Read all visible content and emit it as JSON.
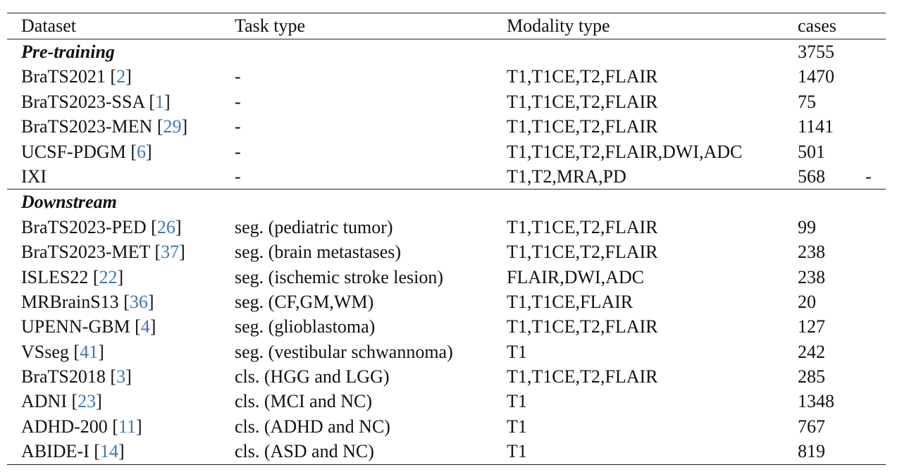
{
  "columns": [
    "Dataset",
    "Task type",
    "Modality type",
    "cases"
  ],
  "pretraining": {
    "label": "Pre-training",
    "total": "3755",
    "rows": [
      {
        "name": "BraTS2021",
        "ref": "2",
        "task": "-",
        "modality": "T1,T1CE,T2,FLAIR",
        "cases": "1470",
        "extra": ""
      },
      {
        "name": "BraTS2023-SSA",
        "ref": "1",
        "task": "-",
        "modality": "T1,T1CE,T2,FLAIR",
        "cases": "75",
        "extra": ""
      },
      {
        "name": "BraTS2023-MEN",
        "ref": "29",
        "task": "-",
        "modality": "T1,T1CE,T2,FLAIR",
        "cases": "1141",
        "extra": ""
      },
      {
        "name": "UCSF-PDGM",
        "ref": "6",
        "task": "-",
        "modality": "T1,T1CE,T2,FLAIR,DWI,ADC",
        "cases": "501",
        "extra": ""
      },
      {
        "name": "IXI",
        "ref": "",
        "task": "-",
        "modality": "T1,T2,MRA,PD",
        "cases": "568",
        "extra": "-"
      }
    ]
  },
  "downstream": {
    "label": "Downstream",
    "rows": [
      {
        "name": "BraTS2023-PED",
        "ref": "26",
        "task": "seg. (pediatric tumor)",
        "modality": "T1,T1CE,T2,FLAIR",
        "cases": "99"
      },
      {
        "name": "BraTS2023-MET",
        "ref": "37",
        "task": "seg. (brain metastases)",
        "modality": "T1,T1CE,T2,FLAIR",
        "cases": "238"
      },
      {
        "name": "ISLES22",
        "ref": "22",
        "task": "seg. (ischemic stroke lesion)",
        "modality": "FLAIR,DWI,ADC",
        "cases": "238"
      },
      {
        "name": "MRBrainS13",
        "ref": "36",
        "task": "seg. (CF,GM,WM)",
        "modality": "T1,T1CE,FLAIR",
        "cases": "20"
      },
      {
        "name": "UPENN-GBM",
        "ref": "4",
        "task": "seg. (glioblastoma)",
        "modality": "T1,T1CE,T2,FLAIR",
        "cases": "127"
      },
      {
        "name": "VSseg",
        "ref": "41",
        "task": "seg. (vestibular schwannoma)",
        "modality": "T1",
        "cases": "242"
      },
      {
        "name": "BraTS2018",
        "ref": "3",
        "task": "cls. (HGG and LGG)",
        "modality": "T1,T1CE,T2,FLAIR",
        "cases": "285"
      },
      {
        "name": "ADNI",
        "ref": "23",
        "task": "cls. (MCI and NC)",
        "modality": "T1",
        "cases": "1348"
      },
      {
        "name": "ADHD-200",
        "ref": "11",
        "task": "cls. (ADHD and NC)",
        "modality": "T1",
        "cases": "767"
      },
      {
        "name": "ABIDE-I",
        "ref": "14",
        "task": "cls. (ASD and NC)",
        "modality": "T1",
        "cases": "819"
      }
    ]
  }
}
